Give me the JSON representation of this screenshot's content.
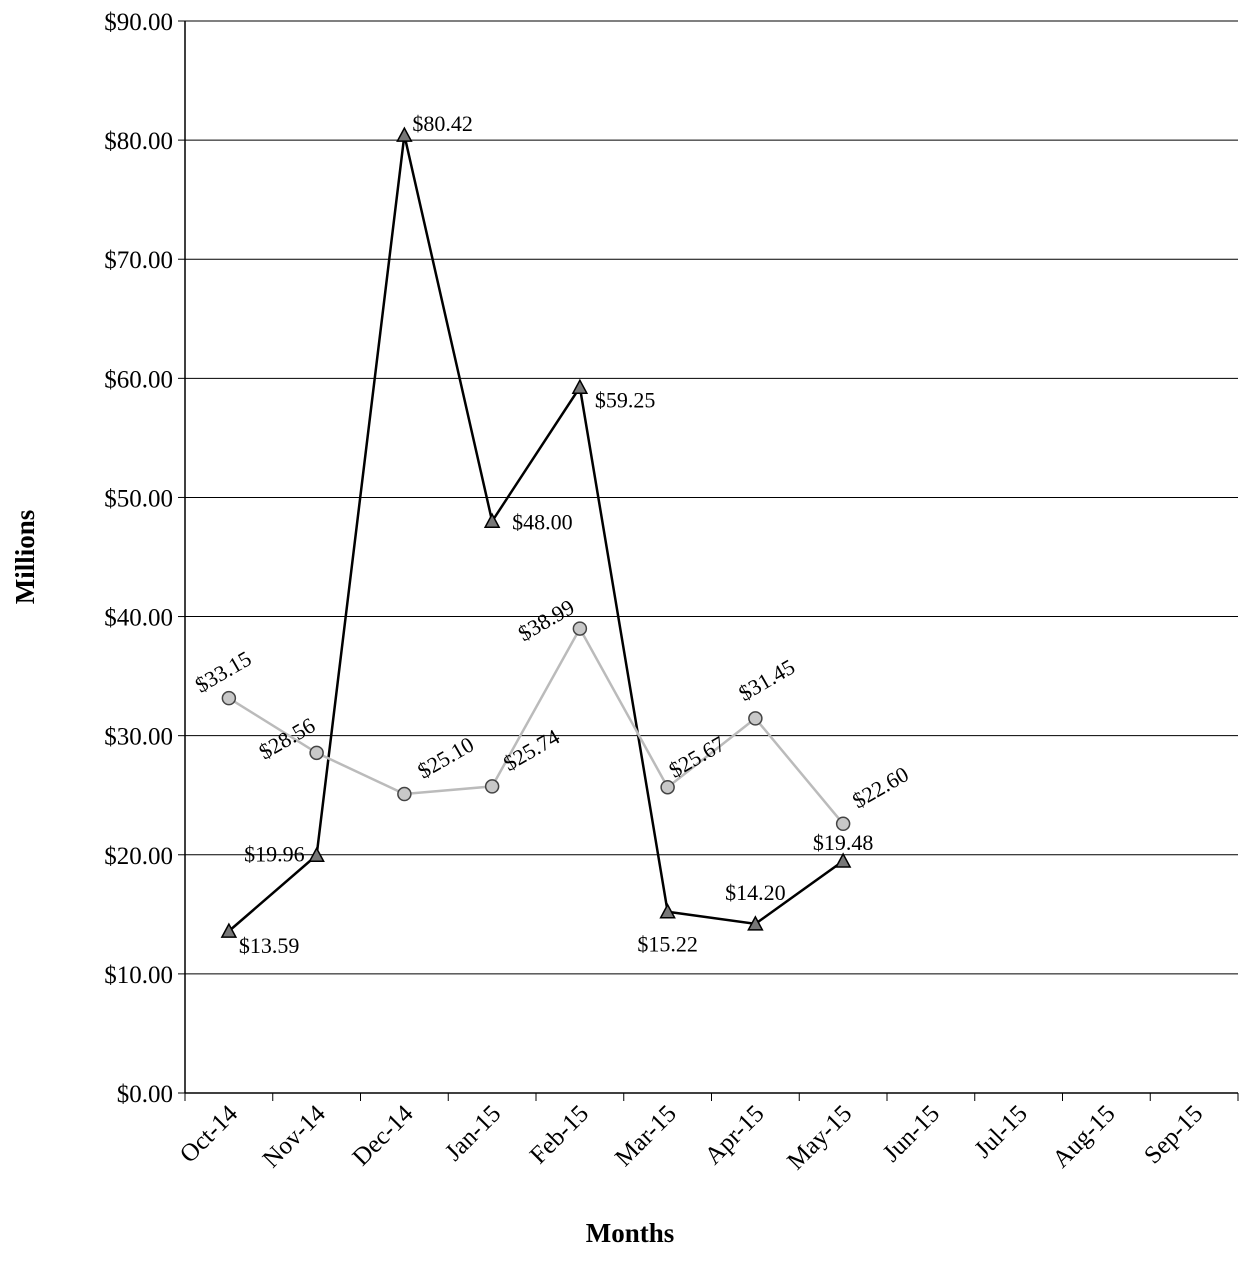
{
  "chart_data": {
    "type": "line",
    "x_label": "Months",
    "y_label": "Millions",
    "categories": [
      "Oct-14",
      "Nov-14",
      "Dec-14",
      "Jan-15",
      "Feb-15",
      "Mar-15",
      "Apr-15",
      "May-15",
      "Jun-15",
      "Jul-15",
      "Aug-15",
      "Sep-15"
    ],
    "series": [
      {
        "color": "#000000",
        "marker": "triangle",
        "marker_color": "#777777",
        "values": [
          13.59,
          19.96,
          80.42,
          48.0,
          59.25,
          15.22,
          14.2,
          19.48,
          null,
          null,
          null,
          null
        ],
        "value_labels": [
          "$13.59",
          "$19.96",
          "$80.42",
          "$48.00",
          "$59.25",
          "$15.22",
          "$14.20",
          "$19.48",
          null,
          null,
          null,
          null
        ]
      },
      {
        "color": "#bbbbbb",
        "marker": "circle",
        "marker_color": "#c8c8c8",
        "values": [
          33.15,
          28.56,
          25.1,
          25.74,
          38.99,
          25.67,
          31.45,
          22.6,
          null,
          null,
          null,
          null
        ],
        "value_labels": [
          "$33.15",
          "$28.56",
          "$25.10",
          "$25.74",
          "$38.99",
          "$25.67",
          "$31.45",
          "$22.60",
          null,
          null,
          null,
          null
        ]
      }
    ],
    "ylim": [
      0,
      90
    ],
    "yticks": [
      {
        "value": 0,
        "label": "$0.00"
      },
      {
        "value": 10,
        "label": "$10.00"
      },
      {
        "value": 20,
        "label": "$20.00"
      },
      {
        "value": 30,
        "label": "$30.00"
      },
      {
        "value": 40,
        "label": "$40.00"
      },
      {
        "value": 50,
        "label": "$50.00"
      },
      {
        "value": 60,
        "label": "$60.00"
      },
      {
        "value": 70,
        "label": "$70.00"
      },
      {
        "value": 80,
        "label": "$80.00"
      },
      {
        "value": 90,
        "label": "$90.00"
      }
    ],
    "grid": true
  }
}
